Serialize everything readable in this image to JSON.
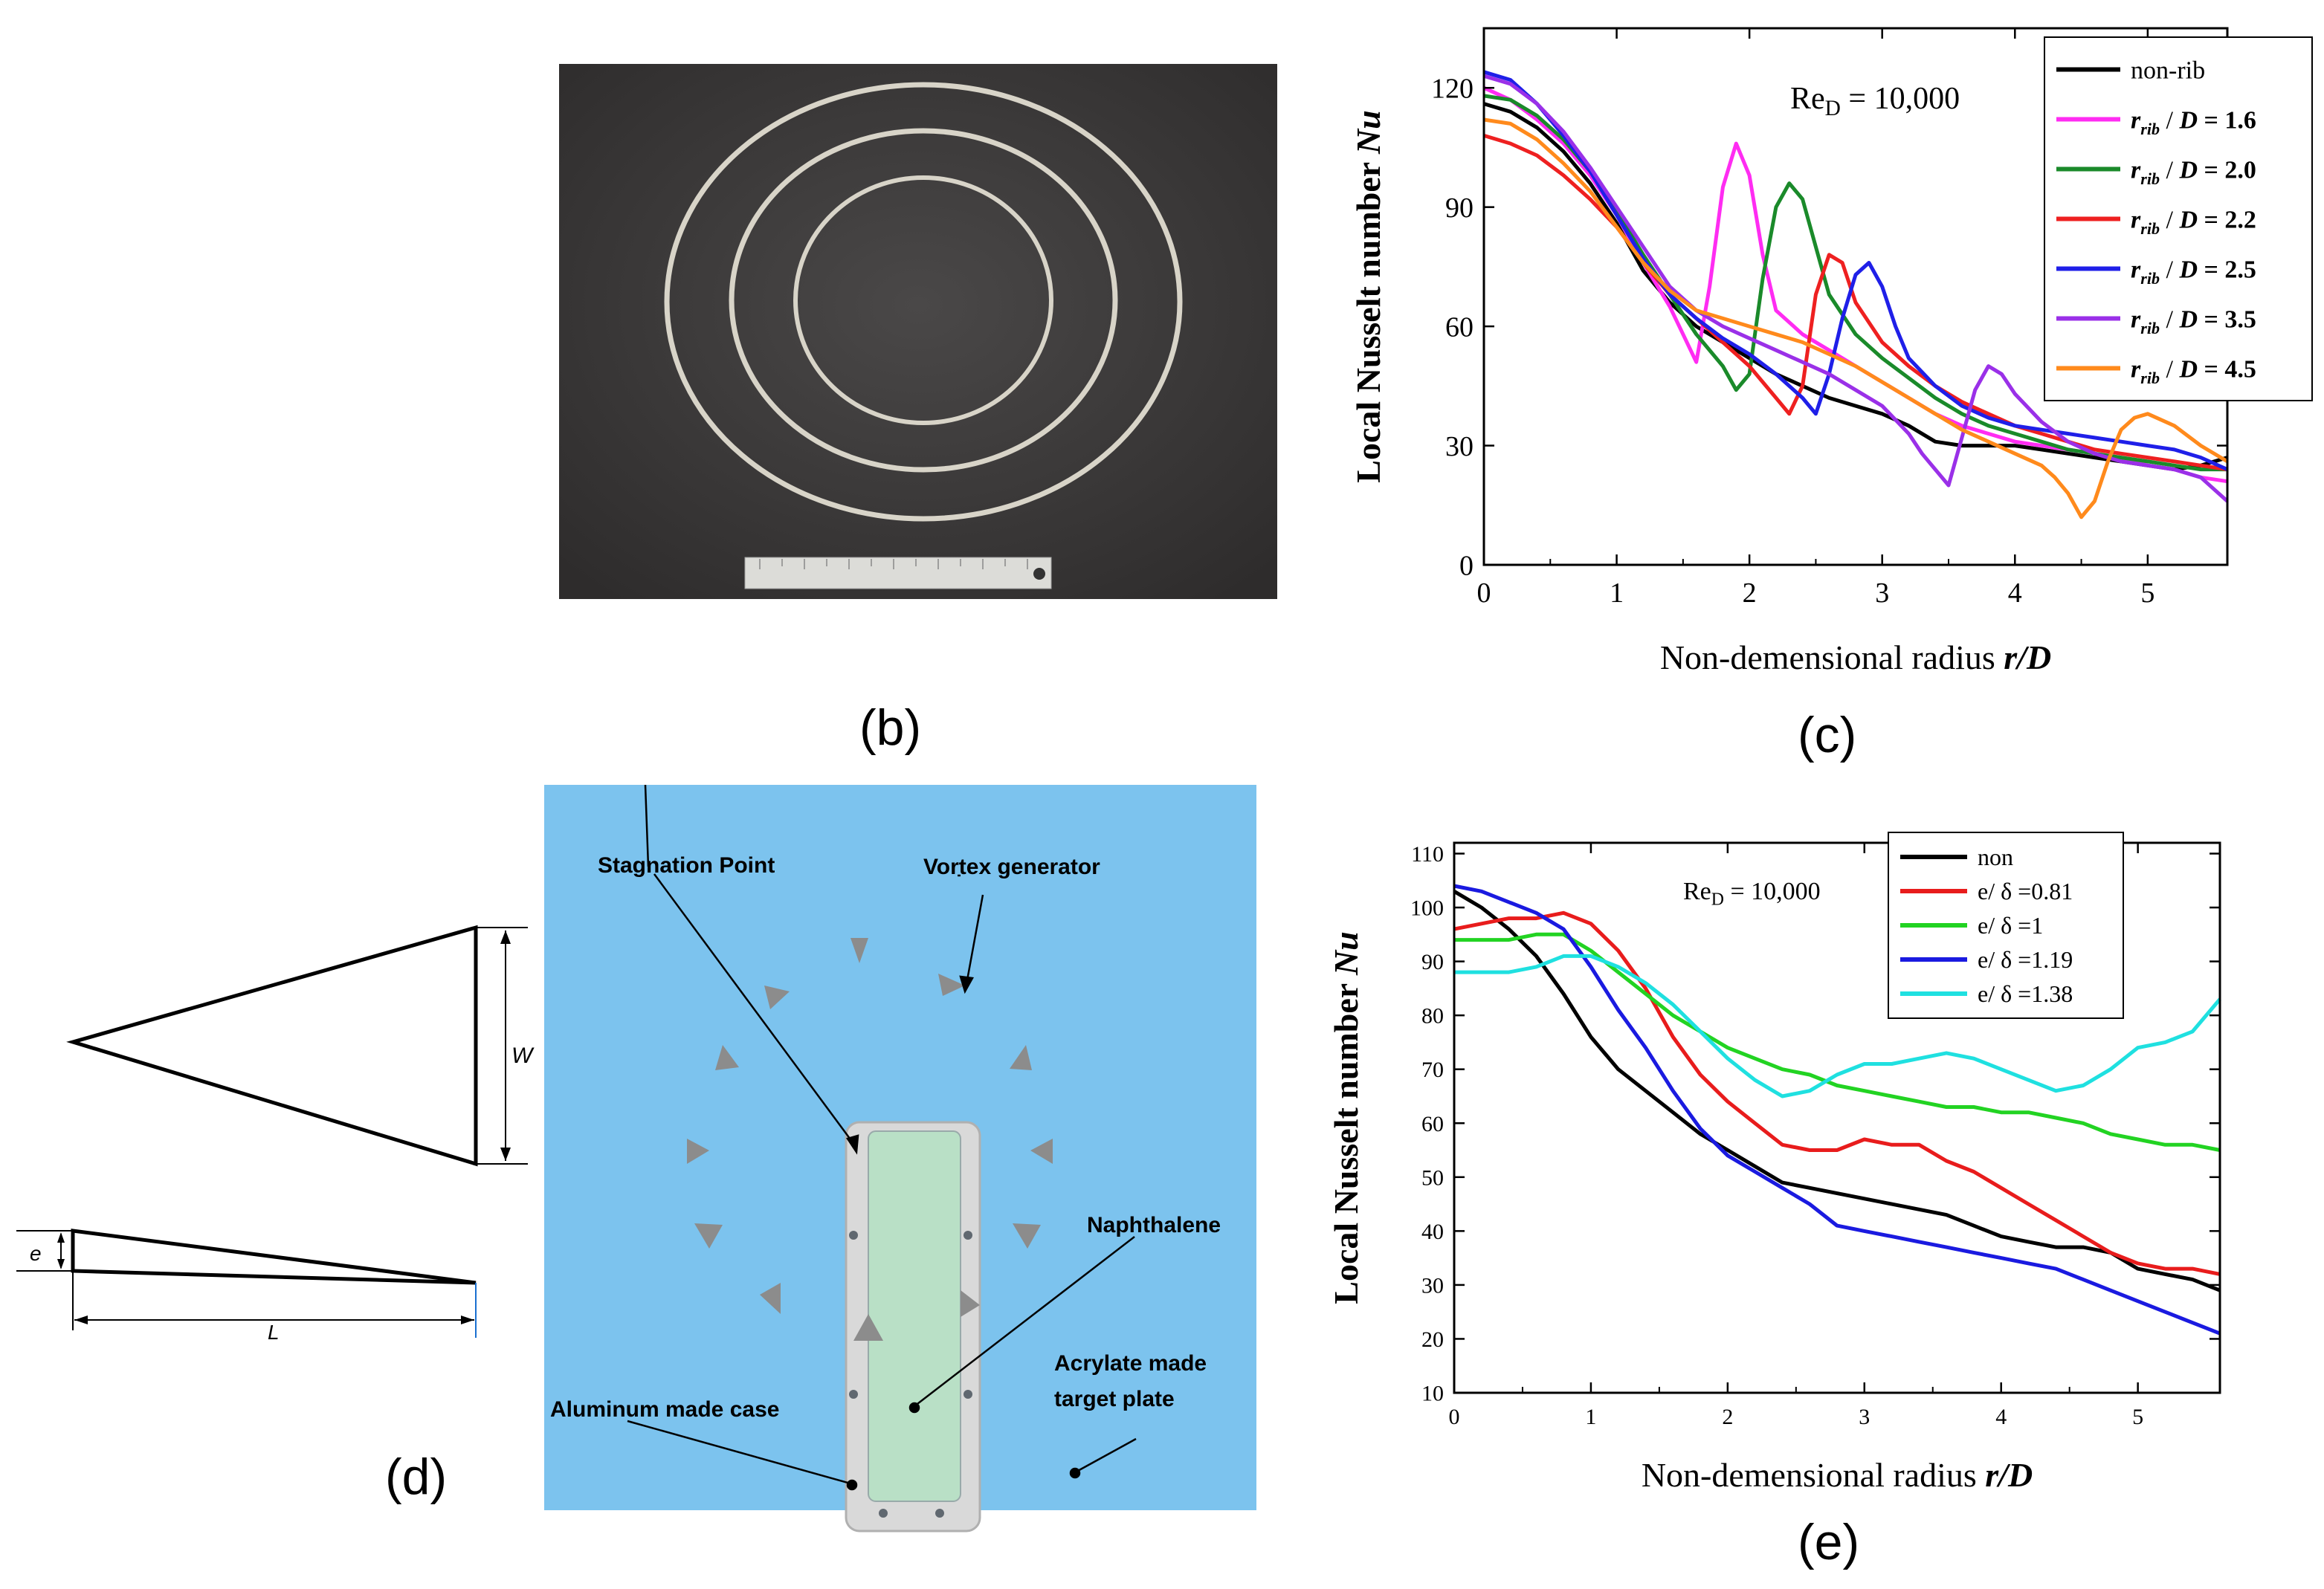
{
  "panel_labels": {
    "b": "(b)",
    "c": "(c)",
    "d": "(d)",
    "e": "(e)"
  },
  "photo_b": {
    "description_color": "#3a3a3a"
  },
  "diagram_d": {
    "labels": {
      "stagnation": "Stagnation Point",
      "vortex": "Vortex generator",
      "naphthalene": "Naphthalene",
      "acrylate_1": "Acrylate made",
      "acrylate_2": "target plate",
      "aluminum": "Aluminum made case",
      "dim_w": "W",
      "dim_e": "e",
      "dim_l": "L"
    },
    "colors": {
      "background": "#7cc3ee",
      "case": "#d9d9d9",
      "naphthalene": "#b9e0c6",
      "generator": "#8c8c8c"
    }
  },
  "chart_data": [
    {
      "type": "line",
      "panel": "c",
      "annotation": {
        "main": "Re",
        "sub": "D",
        "rest": " = 10,000"
      },
      "xlabel": {
        "text": "Non-demensional radius ",
        "italic": "r/D"
      },
      "ylabel": {
        "text": "Local Nusselt number ",
        "italic": "Nu"
      },
      "xlim": [
        0,
        5.6
      ],
      "ylim": [
        0,
        135
      ],
      "xticks": [
        0,
        1,
        2,
        3,
        4,
        5
      ],
      "yticks": [
        0,
        30,
        60,
        90,
        120
      ],
      "legend_position": "top-right",
      "series": [
        {
          "name": "non-rib",
          "label_parts": [
            "non-rib"
          ],
          "color": "#000000",
          "x": [
            0,
            0.2,
            0.4,
            0.6,
            0.8,
            1.0,
            1.2,
            1.4,
            1.6,
            1.8,
            2.0,
            2.2,
            2.4,
            2.6,
            2.8,
            3.0,
            3.2,
            3.4,
            3.6,
            3.8,
            4.0,
            4.2,
            4.4,
            4.6,
            4.8,
            5.0,
            5.2,
            5.4,
            5.6
          ],
          "y": [
            116,
            114,
            110,
            104,
            96,
            86,
            74,
            66,
            60,
            56,
            52,
            48,
            45,
            42,
            40,
            38,
            35,
            31,
            30,
            30,
            30,
            29,
            28,
            27,
            26,
            25,
            24,
            25,
            27
          ]
        },
        {
          "name": "r_rib / D = 1.6",
          "label_parts": [
            "r",
            "rib",
            " / ",
            "D",
            " = 1.6"
          ],
          "color": "#ff2cf2",
          "x": [
            0,
            0.2,
            0.4,
            0.6,
            0.8,
            1.0,
            1.2,
            1.4,
            1.5,
            1.6,
            1.7,
            1.8,
            1.9,
            2.0,
            2.1,
            2.2,
            2.4,
            2.6,
            2.8,
            3.0,
            3.2,
            3.4,
            3.6,
            3.8,
            4.0,
            4.2,
            4.4,
            4.6,
            4.8,
            5.0,
            5.2,
            5.4,
            5.6
          ],
          "y": [
            120,
            117,
            112,
            106,
            98,
            88,
            76,
            65,
            58,
            51,
            70,
            95,
            106,
            98,
            78,
            64,
            58,
            54,
            50,
            46,
            42,
            38,
            35,
            33,
            31,
            30,
            29,
            28,
            27,
            25,
            24,
            22,
            21
          ]
        },
        {
          "name": "r_rib / D = 2.0",
          "label_parts": [
            "r",
            "rib",
            " / ",
            "D",
            " = 2.0"
          ],
          "color": "#1a8a2a",
          "x": [
            0,
            0.2,
            0.4,
            0.6,
            0.8,
            1.0,
            1.2,
            1.4,
            1.6,
            1.8,
            1.9,
            2.0,
            2.1,
            2.2,
            2.3,
            2.4,
            2.5,
            2.6,
            2.8,
            3.0,
            3.2,
            3.4,
            3.6,
            3.8,
            4.0,
            4.2,
            4.4,
            4.6,
            4.8,
            5.0,
            5.2,
            5.4,
            5.6
          ],
          "y": [
            118,
            117,
            113,
            107,
            99,
            89,
            78,
            68,
            58,
            50,
            44,
            48,
            72,
            90,
            96,
            92,
            80,
            68,
            58,
            52,
            47,
            42,
            38,
            35,
            33,
            31,
            29,
            28,
            27,
            26,
            25,
            24,
            24
          ]
        },
        {
          "name": "r_rib / D = 2.2",
          "label_parts": [
            "r",
            "rib",
            " / ",
            "D",
            " = 2.2"
          ],
          "color": "#ee2020",
          "x": [
            0,
            0.2,
            0.4,
            0.6,
            0.8,
            1.0,
            1.2,
            1.4,
            1.6,
            1.8,
            2.0,
            2.1,
            2.2,
            2.3,
            2.4,
            2.5,
            2.6,
            2.7,
            2.8,
            3.0,
            3.2,
            3.4,
            3.6,
            3.8,
            4.0,
            4.2,
            4.4,
            4.6,
            4.8,
            5.0,
            5.2,
            5.4,
            5.6
          ],
          "y": [
            108,
            106,
            103,
            98,
            92,
            85,
            76,
            68,
            62,
            56,
            50,
            46,
            42,
            38,
            45,
            68,
            78,
            76,
            66,
            56,
            50,
            45,
            41,
            38,
            35,
            33,
            31,
            29,
            28,
            27,
            26,
            25,
            24
          ]
        },
        {
          "name": "r_rib / D = 2.5",
          "label_parts": [
            "r",
            "rib",
            " / ",
            "D",
            " = 2.5"
          ],
          "color": "#1f1fe8",
          "x": [
            0,
            0.2,
            0.4,
            0.6,
            0.8,
            1.0,
            1.2,
            1.4,
            1.6,
            1.8,
            2.0,
            2.2,
            2.4,
            2.5,
            2.6,
            2.7,
            2.8,
            2.9,
            3.0,
            3.1,
            3.2,
            3.4,
            3.6,
            3.8,
            4.0,
            4.2,
            4.4,
            4.6,
            4.8,
            5.0,
            5.2,
            5.4,
            5.6
          ],
          "y": [
            124,
            122,
            116,
            108,
            99,
            88,
            77,
            68,
            62,
            57,
            53,
            48,
            42,
            38,
            48,
            62,
            73,
            76,
            70,
            60,
            52,
            45,
            40,
            37,
            35,
            34,
            33,
            32,
            31,
            30,
            29,
            27,
            24
          ]
        },
        {
          "name": "r_rib / D = 3.5",
          "label_parts": [
            "r",
            "rib",
            " / ",
            "D",
            " = 3.5"
          ],
          "color": "#9a30e8",
          "x": [
            0,
            0.2,
            0.4,
            0.6,
            0.8,
            1.0,
            1.2,
            1.4,
            1.6,
            1.8,
            2.0,
            2.2,
            2.4,
            2.6,
            2.8,
            3.0,
            3.2,
            3.3,
            3.4,
            3.5,
            3.6,
            3.7,
            3.8,
            3.9,
            4.0,
            4.2,
            4.4,
            4.6,
            4.8,
            5.0,
            5.2,
            5.4,
            5.6
          ],
          "y": [
            123,
            121,
            116,
            109,
            100,
            90,
            80,
            70,
            64,
            60,
            57,
            54,
            51,
            48,
            44,
            40,
            33,
            28,
            24,
            20,
            32,
            44,
            50,
            48,
            43,
            36,
            31,
            28,
            26,
            25,
            24,
            22,
            16
          ]
        },
        {
          "name": "r_rib / D = 4.5",
          "label_parts": [
            "r",
            "rib",
            " / ",
            "D",
            " = 4.5"
          ],
          "color": "#ff8a1c",
          "x": [
            0,
            0.2,
            0.4,
            0.6,
            0.8,
            1.0,
            1.2,
            1.4,
            1.6,
            1.8,
            2.0,
            2.2,
            2.4,
            2.6,
            2.8,
            3.0,
            3.2,
            3.4,
            3.6,
            3.8,
            4.0,
            4.2,
            4.3,
            4.4,
            4.5,
            4.6,
            4.7,
            4.8,
            4.9,
            5.0,
            5.2,
            5.4,
            5.6
          ],
          "y": [
            112,
            111,
            107,
            101,
            94,
            85,
            76,
            69,
            64,
            62,
            60,
            58,
            56,
            53,
            50,
            46,
            42,
            38,
            34,
            31,
            28,
            25,
            22,
            18,
            12,
            16,
            26,
            34,
            37,
            38,
            35,
            30,
            26
          ]
        }
      ]
    },
    {
      "type": "line",
      "panel": "e",
      "annotation": {
        "main": "Re",
        "sub": "D",
        "rest": " = 10,000"
      },
      "xlabel": {
        "text": "Non-demensional radius ",
        "italic": "r/D"
      },
      "ylabel": {
        "text": "Local Nusselt number ",
        "italic": "Nu"
      },
      "xlim": [
        0,
        5.6
      ],
      "ylim": [
        10,
        112
      ],
      "xticks": [
        0,
        1,
        2,
        3,
        4,
        5
      ],
      "yticks": [
        10,
        20,
        30,
        40,
        50,
        60,
        70,
        80,
        90,
        100,
        110
      ],
      "legend_position": "top-right",
      "series": [
        {
          "name": "non",
          "color": "#000000",
          "x": [
            0,
            0.2,
            0.4,
            0.6,
            0.8,
            1.0,
            1.2,
            1.4,
            1.6,
            1.8,
            2.0,
            2.2,
            2.4,
            2.6,
            2.8,
            3.0,
            3.2,
            3.4,
            3.6,
            3.8,
            4.0,
            4.2,
            4.4,
            4.6,
            4.8,
            5.0,
            5.2,
            5.4,
            5.6
          ],
          "y": [
            103,
            100,
            96,
            91,
            84,
            76,
            70,
            66,
            62,
            58,
            55,
            52,
            49,
            48,
            47,
            46,
            45,
            44,
            43,
            41,
            39,
            38,
            37,
            37,
            36,
            33,
            32,
            31,
            29
          ]
        },
        {
          "name": "e/ δ =0.81",
          "color": "#e81c1c",
          "x": [
            0,
            0.2,
            0.4,
            0.6,
            0.8,
            1.0,
            1.2,
            1.4,
            1.6,
            1.8,
            2.0,
            2.2,
            2.4,
            2.6,
            2.8,
            3.0,
            3.2,
            3.4,
            3.6,
            3.8,
            4.0,
            4.2,
            4.4,
            4.6,
            4.8,
            5.0,
            5.2,
            5.4,
            5.6
          ],
          "y": [
            96,
            97,
            98,
            98,
            99,
            97,
            92,
            85,
            76,
            69,
            64,
            60,
            56,
            55,
            55,
            57,
            56,
            56,
            53,
            51,
            48,
            45,
            42,
            39,
            36,
            34,
            33,
            33,
            32
          ]
        },
        {
          "name": "e/ δ =1",
          "color": "#22d322",
          "x": [
            0,
            0.2,
            0.4,
            0.6,
            0.8,
            1.0,
            1.2,
            1.4,
            1.6,
            1.8,
            2.0,
            2.2,
            2.4,
            2.6,
            2.8,
            3.0,
            3.2,
            3.4,
            3.6,
            3.8,
            4.0,
            4.2,
            4.4,
            4.6,
            4.8,
            5.0,
            5.2,
            5.4,
            5.6
          ],
          "y": [
            94,
            94,
            94,
            95,
            95,
            92,
            88,
            84,
            80,
            77,
            74,
            72,
            70,
            69,
            67,
            66,
            65,
            64,
            63,
            63,
            62,
            62,
            61,
            60,
            58,
            57,
            56,
            56,
            55
          ]
        },
        {
          "name": "e/ δ =1.19",
          "color": "#1a1ae0",
          "x": [
            0,
            0.2,
            0.4,
            0.6,
            0.8,
            1.0,
            1.2,
            1.4,
            1.6,
            1.8,
            2.0,
            2.2,
            2.4,
            2.6,
            2.8,
            3.0,
            3.2,
            3.4,
            3.6,
            3.8,
            4.0,
            4.2,
            4.4,
            4.6,
            4.8,
            5.0,
            5.2,
            5.4,
            5.6
          ],
          "y": [
            104,
            103,
            101,
            99,
            96,
            89,
            81,
            74,
            66,
            59,
            54,
            51,
            48,
            45,
            41,
            40,
            39,
            38,
            37,
            36,
            35,
            34,
            33,
            31,
            29,
            27,
            25,
            23,
            21
          ]
        },
        {
          "name": "e/ δ =1.38",
          "color": "#1fe0e0",
          "x": [
            0,
            0.2,
            0.4,
            0.6,
            0.8,
            1.0,
            1.2,
            1.4,
            1.6,
            1.8,
            2.0,
            2.2,
            2.4,
            2.6,
            2.8,
            3.0,
            3.2,
            3.4,
            3.6,
            3.8,
            4.0,
            4.2,
            4.4,
            4.6,
            4.8,
            5.0,
            5.2,
            5.4,
            5.6
          ],
          "y": [
            88,
            88,
            88,
            89,
            91,
            91,
            89,
            86,
            82,
            77,
            72,
            68,
            65,
            66,
            69,
            71,
            71,
            72,
            73,
            72,
            70,
            68,
            66,
            67,
            70,
            74,
            75,
            77,
            83
          ]
        }
      ]
    }
  ]
}
